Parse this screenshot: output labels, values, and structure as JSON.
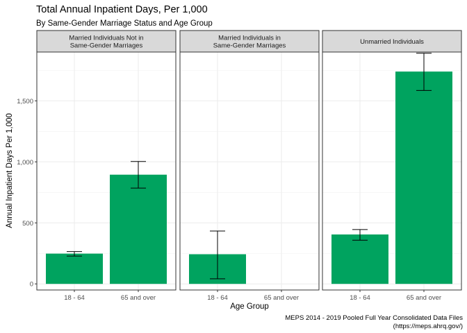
{
  "chart_data": {
    "type": "bar",
    "title": "Total Annual Inpatient Days, Per 1,000",
    "subtitle": "By Same-Gender Marriage Status and Age Group",
    "xlabel": "Age Group",
    "ylabel": "Annual Inpatient Days Per 1,000",
    "caption": [
      "MEPS 2014 - 2019 Pooled Full Year Consolidated Data Files",
      "(https://meps.ahrq.gov/)"
    ],
    "categories": [
      "18 - 64",
      "65 and over"
    ],
    "ylim": [
      -50,
      1900
    ],
    "yticks": [
      0,
      500,
      1000,
      1500
    ],
    "ytick_labels": [
      "0",
      "500",
      "1,000",
      "1,500"
    ],
    "grid": true,
    "bar_color": "#00A35F",
    "panels": [
      {
        "strip": [
          "Married Individuals Not in",
          "Same-Gender Marriages"
        ],
        "values": [
          248,
          895
        ],
        "error_low": [
          228,
          785
        ],
        "error_high": [
          265,
          1003
        ]
      },
      {
        "strip": [
          "Married Individuals in",
          "Same-Gender Marriages"
        ],
        "values": [
          243,
          null
        ],
        "error_low": [
          42,
          null
        ],
        "error_high": [
          433,
          null
        ]
      },
      {
        "strip": [
          "Unmarried Individuals"
        ],
        "values": [
          405,
          1740
        ],
        "error_low": [
          358,
          1585
        ],
        "error_high": [
          445,
          1890
        ]
      }
    ]
  }
}
